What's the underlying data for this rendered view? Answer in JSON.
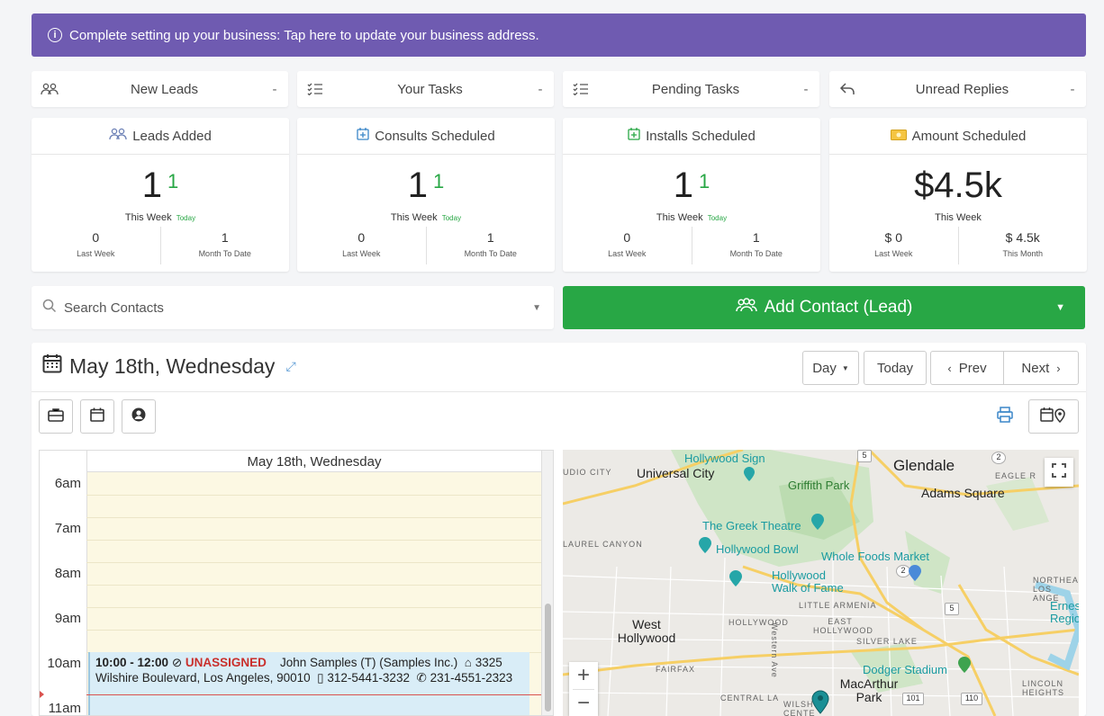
{
  "banner": {
    "text": "Complete setting up your business: Tap here to update your business address."
  },
  "quick": [
    {
      "label": "New Leads",
      "value": "-"
    },
    {
      "label": "Your Tasks",
      "value": "-"
    },
    {
      "label": "Pending Tasks",
      "value": "-"
    },
    {
      "label": "Unread Replies",
      "value": "-"
    }
  ],
  "cards": [
    {
      "title": "Leads Added",
      "big": "1",
      "today": "1",
      "week_label": "This Week",
      "today_label": "Today",
      "l_val": "0",
      "l_label": "Last Week",
      "r_val": "1",
      "r_label": "Month To Date"
    },
    {
      "title": "Consults Scheduled",
      "big": "1",
      "today": "1",
      "week_label": "This Week",
      "today_label": "Today",
      "l_val": "0",
      "l_label": "Last Week",
      "r_val": "1",
      "r_label": "Month To Date"
    },
    {
      "title": "Installs Scheduled",
      "big": "1",
      "today": "1",
      "week_label": "This Week",
      "today_label": "Today",
      "l_val": "0",
      "l_label": "Last Week",
      "r_val": "1",
      "r_label": "Month To Date"
    },
    {
      "title": "Amount Scheduled",
      "big": "$4.5k",
      "week_label": "This Week",
      "l_val": "$ 0",
      "l_label": "Last Week",
      "r_val": "$ 4.5k",
      "r_label": "This Month"
    }
  ],
  "search": {
    "placeholder": "Search Contacts"
  },
  "add_contact": {
    "label": "Add Contact (Lead)"
  },
  "calendar": {
    "title": "May 18th, Wednesday",
    "view": "Day",
    "today": "Today",
    "prev": "Prev",
    "next": "Next",
    "column_header": "May 18th, Wednesday",
    "hours": [
      "6am",
      "7am",
      "8am",
      "9am",
      "10am",
      "11am"
    ],
    "event": {
      "time": "10:00 - 12:00",
      "status": "UNASSIGNED",
      "contact": "John Samples (T) (Samples Inc.)",
      "address_start": "3325",
      "address_rest": "Wilshire Boulevard, Los Angeles, 90010",
      "phone1": "312-5441-3232",
      "phone2": "231-4551-2323"
    }
  },
  "map": {
    "cities": [
      "Glendale",
      "Adams Square",
      "Universal City",
      "West Hollywood",
      "MacArthur Park"
    ],
    "poi": [
      "Hollywood Sign",
      "Griffith Park",
      "The Greek Theatre",
      "Hollywood Bowl",
      "Whole Foods Market",
      "Hollywood Walk of Fame",
      "Dodger Stadium"
    ],
    "small": [
      "UDIO CITY",
      "LAUREL CANYON",
      "HOLLYWOOD",
      "EAST HOLLYWOOD",
      "LITTLE ARMENIA",
      "SILVER LAKE",
      "FAIRFAX",
      "CENTRAL LA",
      "EAGLE R",
      "NORTHEA LOS ANGE",
      "LINCOLN HEIGHTS",
      "WILSH CENTE"
    ],
    "ernest": "Ernest Region",
    "shields": [
      "5",
      "2",
      "2",
      "5",
      "101",
      "110"
    ],
    "street": "Western Ave",
    "zoom_in": "+",
    "zoom_out": "−"
  }
}
